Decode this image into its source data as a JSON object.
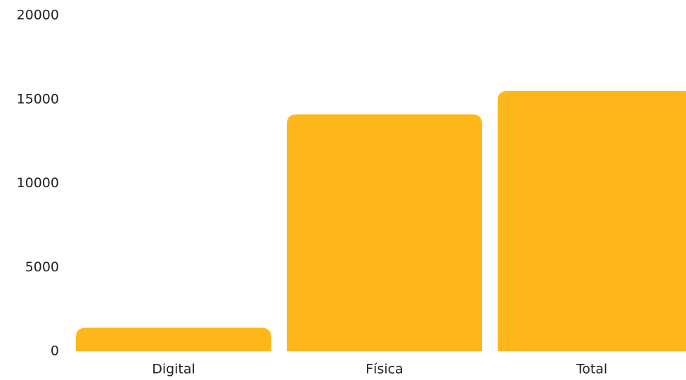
{
  "chart_data": {
    "type": "bar",
    "categories": [
      "Digital",
      "Física",
      "Total"
    ],
    "values": [
      1400,
      14100,
      15500
    ],
    "color": "#fdb71a",
    "ylim": [
      0,
      20000
    ],
    "yticks": [
      0,
      5000,
      10000,
      15000,
      20000
    ],
    "grid": false
  }
}
